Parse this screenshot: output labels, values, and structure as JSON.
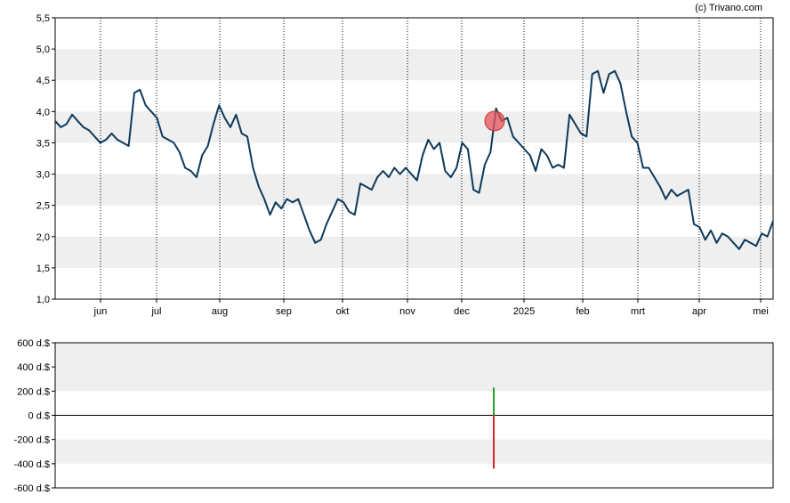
{
  "credit": "(c) Trivano.com",
  "colors": {
    "line": "#0d3a5c",
    "band": "#efefef",
    "marker": "#e8505b",
    "positive": "#2ca02c",
    "negative": "#d62728",
    "axis": "#000000"
  },
  "chart_data": [
    {
      "type": "line",
      "title": "",
      "xlabel": "",
      "ylabel": "",
      "ylim": [
        1.0,
        5.5
      ],
      "y_ticks": [
        "1,0",
        "1,5",
        "2,0",
        "2,5",
        "3,0",
        "3,5",
        "4,0",
        "4,5",
        "5,0",
        "5,5"
      ],
      "x_ticks": [
        "jun",
        "jul",
        "aug",
        "sep",
        "okt",
        "nov",
        "dec",
        "2025",
        "feb",
        "mrt",
        "apr",
        "mei"
      ],
      "grid": "vertical dotted lines at month starts; alternating horizontal bands",
      "series": [
        {
          "values": [
            3.85,
            3.75,
            3.8,
            3.95,
            3.85,
            3.75,
            3.7,
            3.6,
            3.5,
            3.55,
            3.65,
            3.55,
            3.5,
            3.45,
            4.3,
            4.35,
            4.1,
            4.0,
            3.9,
            3.6,
            3.55,
            3.5,
            3.35,
            3.1,
            3.05,
            2.95,
            3.3,
            3.45,
            3.8,
            4.1,
            3.9,
            3.75,
            3.95,
            3.65,
            3.6,
            3.1,
            2.8,
            2.6,
            2.35,
            2.55,
            2.45,
            2.6,
            2.55,
            2.6,
            2.35,
            2.1,
            1.9,
            1.95,
            2.2,
            2.4,
            2.6,
            2.55,
            2.4,
            2.35,
            2.85,
            2.8,
            2.75,
            2.95,
            3.05,
            2.95,
            3.1,
            3.0,
            3.1,
            3.0,
            2.9,
            3.3,
            3.55,
            3.4,
            3.5,
            3.05,
            2.95,
            3.1,
            3.5,
            3.4,
            2.75,
            2.7,
            3.15,
            3.35,
            4.05,
            3.85,
            3.9,
            3.6,
            3.5,
            3.4,
            3.3,
            3.05,
            3.4,
            3.3,
            3.1,
            3.15,
            3.1,
            3.95,
            3.8,
            3.65,
            3.6,
            4.6,
            4.65,
            4.3,
            4.6,
            4.65,
            4.45,
            4.0,
            3.6,
            3.5,
            3.1,
            3.1,
            2.95,
            2.8,
            2.6,
            2.75,
            2.65,
            2.7,
            2.75,
            2.2,
            2.15,
            1.95,
            2.1,
            1.9,
            2.05,
            2.0,
            1.9,
            1.8,
            1.95,
            1.9,
            1.85,
            2.05,
            2.0,
            2.25
          ]
        }
      ],
      "marker": {
        "value": 3.85,
        "position": "mid-december",
        "shape": "circle"
      }
    },
    {
      "type": "bar",
      "title": "",
      "xlabel": "",
      "ylabel": "",
      "ylim": [
        -600,
        600
      ],
      "y_ticks": [
        "600 d.$",
        "400 d.$",
        "200 d.$",
        "0 d.$",
        "-200 d.$",
        "-400 d.$",
        "-600 d.$"
      ],
      "grid": "alternating horizontal bands; zero line",
      "bars": [
        {
          "position": "mid-december",
          "value": 230,
          "sign": "positive"
        },
        {
          "position": "mid-december",
          "value": -440,
          "sign": "negative"
        }
      ]
    }
  ]
}
